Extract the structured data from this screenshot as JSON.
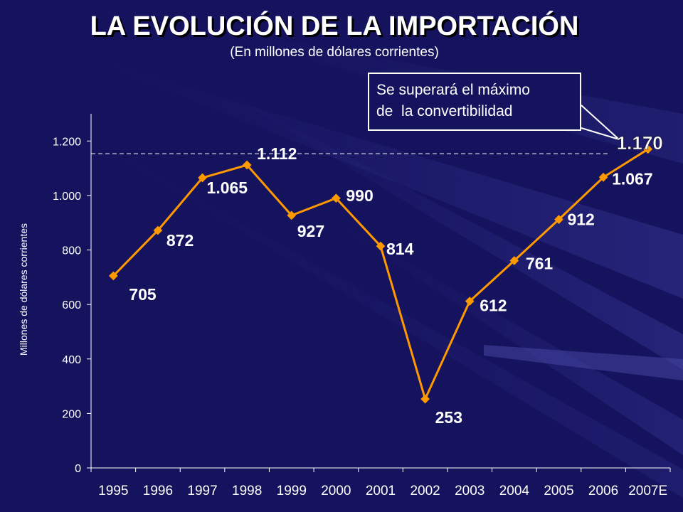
{
  "title": "LA EVOLUCIÓN DE LA IMPORTACIÓN",
  "subtitle": "(En millones de dólares corrientes)",
  "callout": {
    "line1": "Se superará el máximo",
    "line2": "de  la convertibilidad"
  },
  "colors": {
    "background": "#15135e",
    "series": "#ff9900",
    "text": "#ffffff"
  },
  "chart_data": {
    "type": "line",
    "ylabel": "Millones de dólares corrientes",
    "ylim": [
      0,
      1300
    ],
    "yticks": [
      0,
      200,
      400,
      600,
      800,
      1000,
      1200
    ],
    "ytick_labels": [
      "0",
      "200",
      "400",
      "600",
      "800",
      "1.000",
      "1.200"
    ],
    "categories": [
      "1995",
      "1996",
      "1997",
      "1998",
      "1999",
      "2000",
      "2001",
      "2002",
      "2003",
      "2004",
      "2005",
      "2006",
      "2007E"
    ],
    "series": [
      {
        "values": [
          705,
          872,
          1065,
          1112,
          927,
          990,
          814,
          253,
          612,
          761,
          912,
          1067,
          1170
        ],
        "labels": [
          "705",
          "872",
          "1.065",
          "1.112",
          "927",
          "990",
          "814",
          "253",
          "612",
          "761",
          "912",
          "1.067",
          "1.170"
        ]
      }
    ],
    "reference_line": 1190,
    "grid": false,
    "legend": "none"
  }
}
